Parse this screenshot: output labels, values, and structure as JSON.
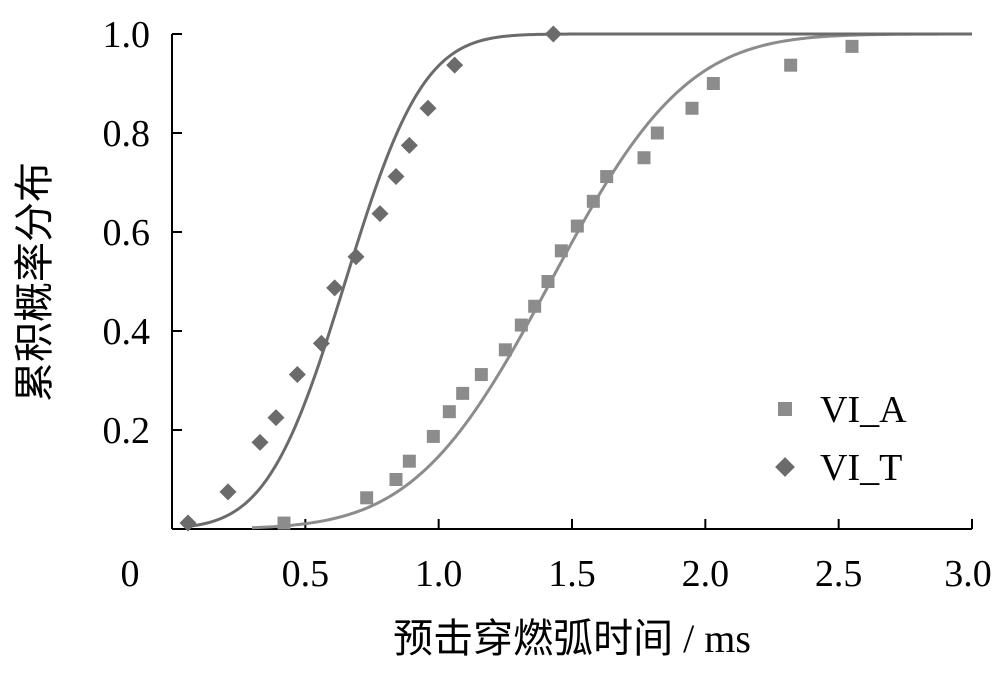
{
  "chart_data": {
    "type": "scatter",
    "title": "",
    "xlabel": "预击穿燃弧时间 / ms",
    "ylabel": "累积概率分布",
    "xlim": [
      0,
      3.0
    ],
    "ylim": [
      0,
      1.0
    ],
    "x_ticks": [
      "0",
      "0.5",
      "1.0",
      "1.5",
      "2.0",
      "2.5",
      "3.0"
    ],
    "y_ticks": [
      "0.2",
      "0.4",
      "0.6",
      "0.8",
      "1.0"
    ],
    "grid": false,
    "legend_position": "bottom-right",
    "series": [
      {
        "name": "VI_A",
        "marker": "square",
        "color": "#8c8c8c",
        "points": [
          [
            0.42,
            0.012
          ],
          [
            0.73,
            0.063
          ],
          [
            0.84,
            0.1
          ],
          [
            0.89,
            0.137
          ],
          [
            0.98,
            0.187
          ],
          [
            1.04,
            0.237
          ],
          [
            1.09,
            0.274
          ],
          [
            1.16,
            0.312
          ],
          [
            1.25,
            0.362
          ],
          [
            1.31,
            0.412
          ],
          [
            1.36,
            0.45
          ],
          [
            1.41,
            0.5
          ],
          [
            1.46,
            0.562
          ],
          [
            1.52,
            0.612
          ],
          [
            1.58,
            0.662
          ],
          [
            1.63,
            0.712
          ],
          [
            1.77,
            0.75
          ],
          [
            1.82,
            0.8
          ],
          [
            1.95,
            0.85
          ],
          [
            2.03,
            0.9
          ],
          [
            2.32,
            0.937
          ],
          [
            2.55,
            0.975
          ]
        ],
        "fit": {
          "mean": 1.42,
          "sd": 0.4
        }
      },
      {
        "name": "VI_T",
        "marker": "diamond",
        "color": "#6b6b6b",
        "points": [
          [
            0.06,
            0.012
          ],
          [
            0.21,
            0.075
          ],
          [
            0.33,
            0.175
          ],
          [
            0.39,
            0.225
          ],
          [
            0.47,
            0.312
          ],
          [
            0.56,
            0.375
          ],
          [
            0.61,
            0.487
          ],
          [
            0.69,
            0.55
          ],
          [
            0.78,
            0.637
          ],
          [
            0.84,
            0.712
          ],
          [
            0.89,
            0.775
          ],
          [
            0.96,
            0.85
          ],
          [
            1.06,
            0.937
          ],
          [
            1.43,
            1.0
          ]
        ],
        "fit": {
          "mean": 0.65,
          "sd": 0.23
        }
      }
    ]
  }
}
